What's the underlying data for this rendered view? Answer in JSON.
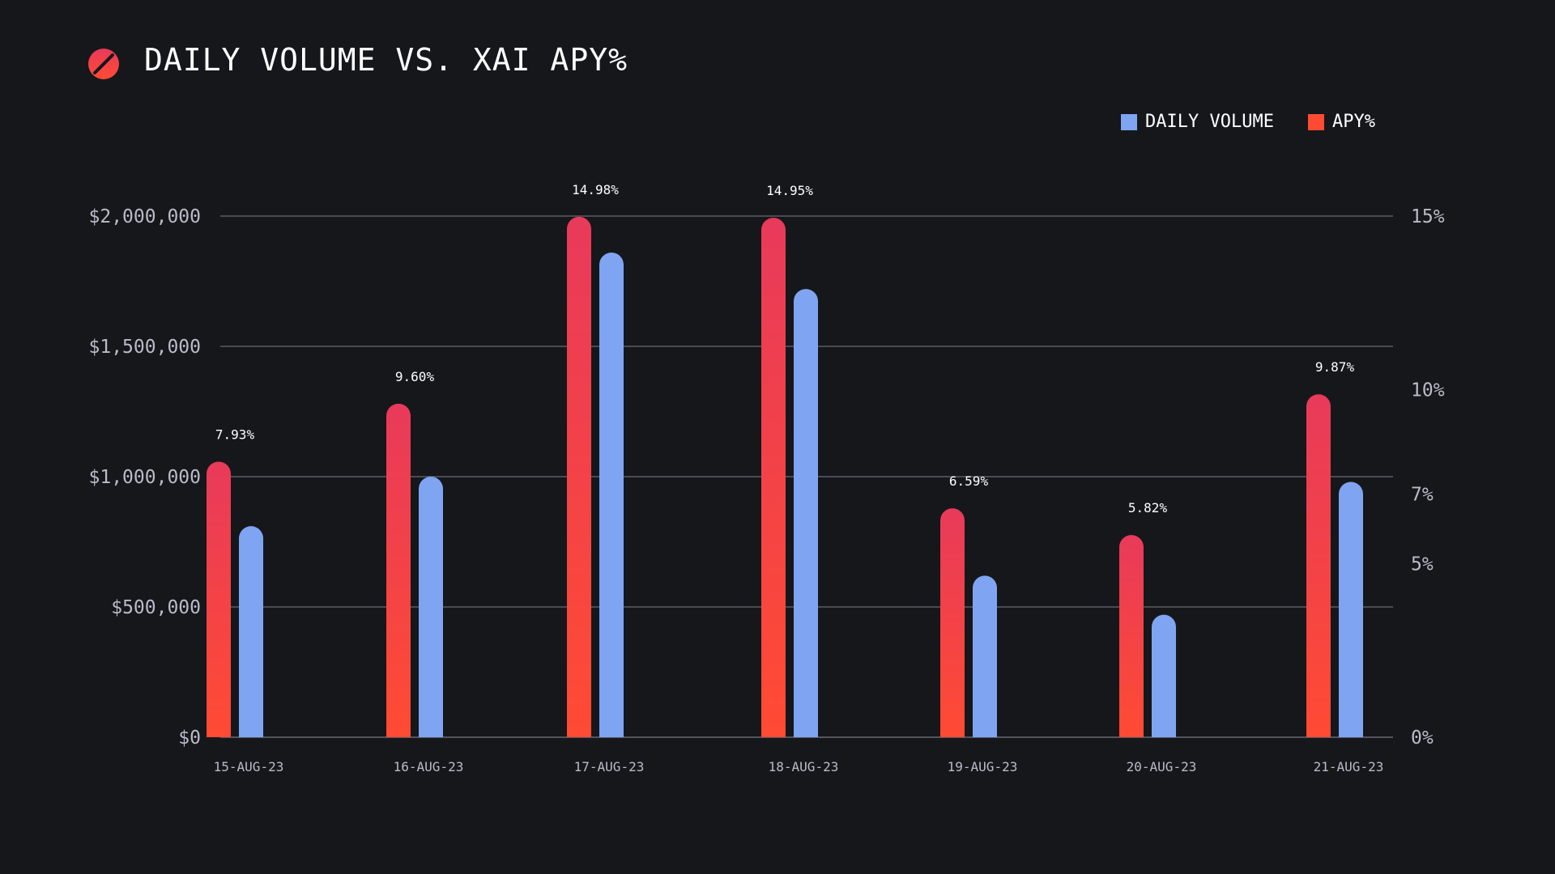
{
  "header": {
    "title": "DAILY VOLUME VS. XAI APY%",
    "logo_icon": "slashed-circle-icon"
  },
  "legend": {
    "volume_label": "DAILY VOLUME",
    "apy_label": "APY%"
  },
  "colors": {
    "background": "#16171b",
    "volume": "#7fa4f2",
    "apy_top": "#e83a5a",
    "apy_bottom": "#ff4b33",
    "grid": "#5a5d66",
    "axis_text": "#b8bcc8"
  },
  "chart_data": {
    "type": "bar",
    "title": "DAILY VOLUME VS. XAI APY%",
    "categories": [
      "15-AUG-23",
      "16-AUG-23",
      "17-AUG-23",
      "18-AUG-23",
      "19-AUG-23",
      "20-AUG-23",
      "21-AUG-23"
    ],
    "series": [
      {
        "name": "APY%",
        "axis": "right",
        "values": [
          7.93,
          9.6,
          14.98,
          14.95,
          6.59,
          5.82,
          9.87
        ],
        "labels": [
          "7.93%",
          "9.60%",
          "14.98%",
          "14.95%",
          "6.59%",
          "5.82%",
          "9.87%"
        ]
      },
      {
        "name": "DAILY VOLUME",
        "axis": "left",
        "values": [
          810000,
          1000000,
          1860000,
          1720000,
          620000,
          470000,
          980000
        ]
      }
    ],
    "left_axis": {
      "ylim": [
        0,
        2000000
      ],
      "ticks": [
        0,
        500000,
        1000000,
        1500000,
        2000000
      ],
      "tick_labels": [
        "$0",
        "$500,000",
        "$1,000,000",
        "$1,500,000",
        "$2,000,000"
      ]
    },
    "right_axis": {
      "ylim": [
        0,
        15
      ],
      "tick_values": [
        0,
        5,
        7,
        10,
        15
      ],
      "tick_labels": [
        "0%",
        "5%",
        "7%",
        "10%",
        "15%"
      ]
    },
    "grid": true,
    "legend_position": "top-right"
  }
}
